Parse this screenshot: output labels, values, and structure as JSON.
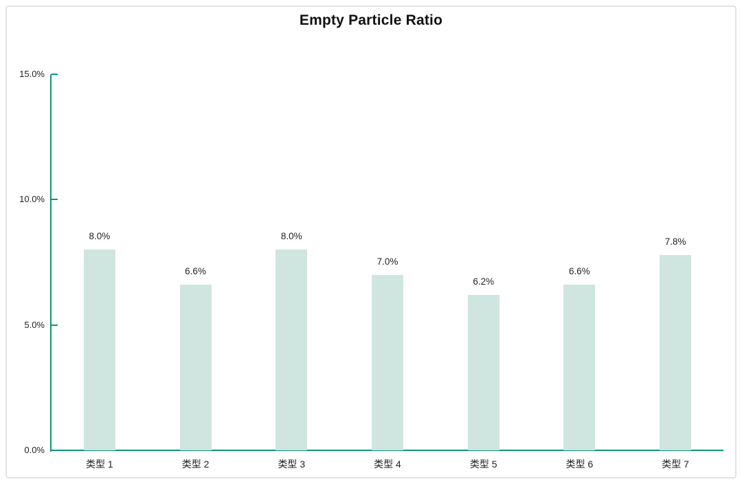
{
  "chart_data": {
    "type": "bar",
    "title": "Empty Particle Ratio",
    "categories": [
      "类型 1",
      "类型 2",
      "类型 3",
      "类型 4",
      "类型 5",
      "类型 6",
      "类型 7"
    ],
    "values": [
      8.0,
      6.6,
      8.0,
      7.0,
      6.2,
      6.6,
      7.8
    ],
    "value_labels": [
      "8.0%",
      "6.6%",
      "8.0%",
      "7.0%",
      "6.2%",
      "6.6%",
      "7.8%"
    ],
    "xlabel": "",
    "ylabel": "",
    "ylim": [
      0,
      15
    ],
    "yticks": [
      0,
      5,
      10,
      15
    ],
    "ytick_labels": [
      "0.0%",
      "5.0%",
      "10.0%",
      "15.0%"
    ],
    "grid": false,
    "legend": null,
    "layout_hint": "vertical bars, y-axis left with inward ticks, no gridlines, value labels above bars",
    "colors": {
      "bar_fill": "#cfe5e0",
      "axis": "#0b9579",
      "title_text": "#111111",
      "label_text": "#1f1f1f",
      "card_border": "#e3e3e3",
      "background": "#ffffff"
    }
  }
}
